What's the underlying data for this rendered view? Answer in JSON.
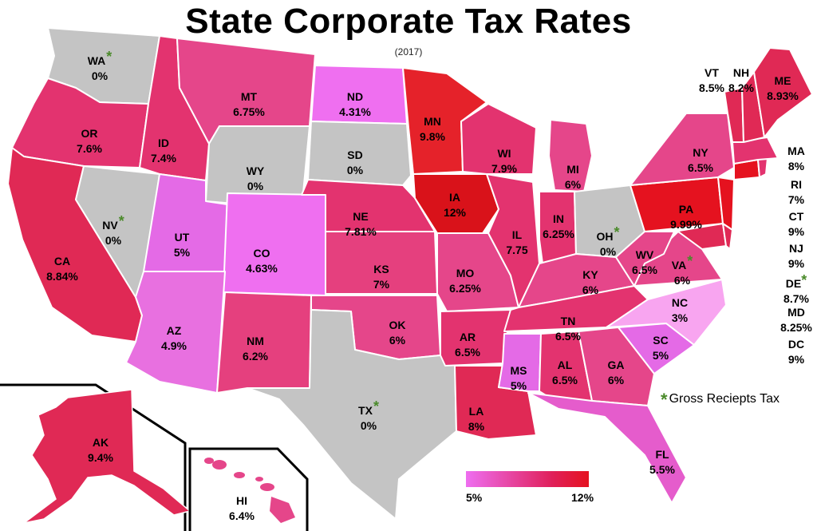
{
  "title": "State Corporate Tax Rates",
  "subtitle": "(2017)",
  "colors": {
    "none": "#c4c4c4",
    "low": "#ee6ef0",
    "mid": "#e5468a",
    "high": "#e5121f"
  },
  "states": [
    {
      "abbr": "WA",
      "rate": "0%",
      "gross": true
    },
    {
      "abbr": "OR",
      "rate": "7.6%"
    },
    {
      "abbr": "CA",
      "rate": "8.84%"
    },
    {
      "abbr": "NV",
      "rate": "0%",
      "gross": true
    },
    {
      "abbr": "ID",
      "rate": "7.4%"
    },
    {
      "abbr": "MT",
      "rate": "6.75%"
    },
    {
      "abbr": "WY",
      "rate": "0%"
    },
    {
      "abbr": "UT",
      "rate": "5%"
    },
    {
      "abbr": "AZ",
      "rate": "4.9%"
    },
    {
      "abbr": "CO",
      "rate": "4.63%"
    },
    {
      "abbr": "NM",
      "rate": "6.2%"
    },
    {
      "abbr": "ND",
      "rate": "4.31%"
    },
    {
      "abbr": "SD",
      "rate": "0%"
    },
    {
      "abbr": "NE",
      "rate": "7.81%"
    },
    {
      "abbr": "KS",
      "rate": "7%"
    },
    {
      "abbr": "OK",
      "rate": "6%"
    },
    {
      "abbr": "TX",
      "rate": "0%",
      "gross": true
    },
    {
      "abbr": "MN",
      "rate": "9.8%"
    },
    {
      "abbr": "IA",
      "rate": "12%"
    },
    {
      "abbr": "MO",
      "rate": "6.25%"
    },
    {
      "abbr": "AR",
      "rate": "6.5%"
    },
    {
      "abbr": "LA",
      "rate": "8%"
    },
    {
      "abbr": "WI",
      "rate": "7.9%"
    },
    {
      "abbr": "IL",
      "rate": "7.75"
    },
    {
      "abbr": "MI",
      "rate": "6%"
    },
    {
      "abbr": "IN",
      "rate": "6.25%"
    },
    {
      "abbr": "OH",
      "rate": "0%",
      "gross": true
    },
    {
      "abbr": "KY",
      "rate": "6%"
    },
    {
      "abbr": "TN",
      "rate": "6.5%"
    },
    {
      "abbr": "MS",
      "rate": "5%"
    },
    {
      "abbr": "AL",
      "rate": "6.5%"
    },
    {
      "abbr": "GA",
      "rate": "6%"
    },
    {
      "abbr": "FL",
      "rate": "5.5%"
    },
    {
      "abbr": "SC",
      "rate": "5%"
    },
    {
      "abbr": "NC",
      "rate": "3%"
    },
    {
      "abbr": "VA",
      "rate": "6%",
      "gross": true
    },
    {
      "abbr": "WV",
      "rate": "6.5%"
    },
    {
      "abbr": "PA",
      "rate": "9.99%"
    },
    {
      "abbr": "NY",
      "rate": "6.5%"
    },
    {
      "abbr": "VT",
      "rate": "8.5%"
    },
    {
      "abbr": "NH",
      "rate": "8.2%"
    },
    {
      "abbr": "ME",
      "rate": "8.93%"
    },
    {
      "abbr": "AK",
      "rate": "9.4%"
    },
    {
      "abbr": "HI",
      "rate": "6.4%"
    }
  ],
  "side_list": [
    {
      "abbr": "MA",
      "rate": "8%"
    },
    {
      "abbr": "RI",
      "rate": "7%"
    },
    {
      "abbr": "CT",
      "rate": "9%"
    },
    {
      "abbr": "NJ",
      "rate": "9%"
    },
    {
      "abbr": "DE",
      "rate": "8.7%",
      "gross": true
    },
    {
      "abbr": "MD",
      "rate": "8.25%"
    },
    {
      "abbr": "DC",
      "rate": "9%"
    }
  ],
  "legend": {
    "gross_note": "Gross Reciepts Tax",
    "star": "*",
    "scale_min": "5%",
    "scale_max": "12%"
  }
}
